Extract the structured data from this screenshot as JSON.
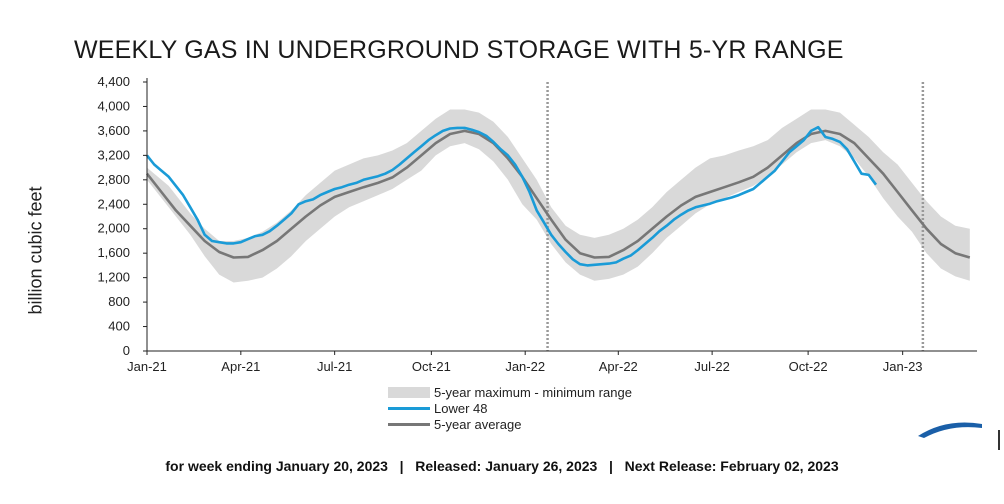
{
  "chart_data": {
    "type": "area",
    "title": "WEEKLY GAS IN UNDERGROUND STORAGE WITH 5-YR RANGE",
    "ylabel": "billion cubic feet",
    "xlabel": "",
    "ylim": [
      0,
      4400
    ],
    "yticks": [
      0,
      400,
      800,
      1200,
      1600,
      2000,
      2400,
      2800,
      3200,
      3600,
      4000,
      4400
    ],
    "ytick_labels": [
      "0",
      "400",
      "800",
      "1,200",
      "1,600",
      "2,000",
      "2,400",
      "2,800",
      "3,200",
      "3,600",
      "4,000",
      "4,400"
    ],
    "xlim": [
      0,
      115
    ],
    "x_unit": "week index from Jan-21",
    "xticks": [
      {
        "x": 0,
        "label": "Jan-21"
      },
      {
        "x": 13,
        "label": "Apr-21"
      },
      {
        "x": 26,
        "label": "Jul-21"
      },
      {
        "x": 39.4,
        "label": "Oct-21"
      },
      {
        "x": 52.4,
        "label": "Jan-22"
      },
      {
        "x": 65.3,
        "label": "Apr-22"
      },
      {
        "x": 78.3,
        "label": "Jul-22"
      },
      {
        "x": 91.6,
        "label": "Oct-22"
      },
      {
        "x": 104.7,
        "label": "Jan-23"
      }
    ],
    "year_dividers": [
      55.5,
      107.5
    ],
    "grid": true,
    "series": [
      {
        "name": "5-year maximum - minimum range",
        "kind": "band",
        "points": [
          [
            0,
            3000,
            2800
          ],
          [
            3,
            2700,
            2350
          ],
          [
            6,
            2250,
            1900
          ],
          [
            8,
            2000,
            1550
          ],
          [
            10,
            1800,
            1250
          ],
          [
            12,
            1800,
            1120
          ],
          [
            14,
            1850,
            1150
          ],
          [
            16,
            1950,
            1200
          ],
          [
            18,
            2100,
            1350
          ],
          [
            20,
            2300,
            1550
          ],
          [
            22,
            2550,
            1800
          ],
          [
            24,
            2750,
            2000
          ],
          [
            26,
            2950,
            2200
          ],
          [
            28,
            3050,
            2350
          ],
          [
            30,
            3150,
            2450
          ],
          [
            32,
            3200,
            2550
          ],
          [
            34,
            3280,
            2650
          ],
          [
            36,
            3400,
            2800
          ],
          [
            38,
            3600,
            2950
          ],
          [
            40,
            3800,
            3200
          ],
          [
            42,
            3950,
            3350
          ],
          [
            44,
            3950,
            3400
          ],
          [
            46,
            3900,
            3300
          ],
          [
            48,
            3750,
            3100
          ],
          [
            50,
            3500,
            2800
          ],
          [
            52,
            3150,
            2400
          ],
          [
            54,
            2800,
            2150
          ],
          [
            56,
            2350,
            1750
          ],
          [
            58,
            2050,
            1450
          ],
          [
            60,
            1900,
            1250
          ],
          [
            62,
            1850,
            1150
          ],
          [
            64,
            1900,
            1180
          ],
          [
            66,
            2000,
            1250
          ],
          [
            68,
            2150,
            1380
          ],
          [
            70,
            2350,
            1600
          ],
          [
            72,
            2600,
            1850
          ],
          [
            74,
            2800,
            2050
          ],
          [
            76,
            3000,
            2250
          ],
          [
            78,
            3150,
            2400
          ],
          [
            80,
            3200,
            2500
          ],
          [
            82,
            3280,
            2600
          ],
          [
            84,
            3350,
            2700
          ],
          [
            86,
            3450,
            2850
          ],
          [
            88,
            3650,
            3050
          ],
          [
            90,
            3800,
            3250
          ],
          [
            92,
            3950,
            3400
          ],
          [
            94,
            3950,
            3450
          ],
          [
            96,
            3900,
            3350
          ],
          [
            98,
            3700,
            3150
          ],
          [
            100,
            3500,
            2850
          ],
          [
            102,
            3250,
            2500
          ],
          [
            104,
            3050,
            2200
          ],
          [
            106,
            2750,
            1950
          ],
          [
            108,
            2450,
            1600
          ],
          [
            110,
            2200,
            1350
          ],
          [
            112,
            2050,
            1220
          ],
          [
            114,
            2000,
            1150
          ]
        ]
      },
      {
        "name": "Lower 48",
        "kind": "line",
        "points": [
          [
            0,
            3200
          ],
          [
            1,
            3050
          ],
          [
            2,
            2950
          ],
          [
            3,
            2850
          ],
          [
            4,
            2700
          ],
          [
            5,
            2550
          ],
          [
            6,
            2350
          ],
          [
            7,
            2150
          ],
          [
            8,
            1900
          ],
          [
            9,
            1800
          ],
          [
            10,
            1780
          ],
          [
            11,
            1760
          ],
          [
            12,
            1760
          ],
          [
            13,
            1780
          ],
          [
            14,
            1830
          ],
          [
            15,
            1880
          ],
          [
            16,
            1900
          ],
          [
            17,
            1960
          ],
          [
            18,
            2050
          ],
          [
            19,
            2150
          ],
          [
            20,
            2250
          ],
          [
            21,
            2400
          ],
          [
            22,
            2450
          ],
          [
            23,
            2480
          ],
          [
            24,
            2550
          ],
          [
            25,
            2600
          ],
          [
            26,
            2650
          ],
          [
            27,
            2680
          ],
          [
            28,
            2720
          ],
          [
            29,
            2750
          ],
          [
            30,
            2800
          ],
          [
            31,
            2830
          ],
          [
            32,
            2860
          ],
          [
            33,
            2900
          ],
          [
            34,
            2960
          ],
          [
            35,
            3050
          ],
          [
            36,
            3150
          ],
          [
            37,
            3250
          ],
          [
            38,
            3350
          ],
          [
            39,
            3450
          ],
          [
            40,
            3530
          ],
          [
            41,
            3600
          ],
          [
            42,
            3640
          ],
          [
            43,
            3650
          ],
          [
            44,
            3650
          ],
          [
            45,
            3620
          ],
          [
            46,
            3580
          ],
          [
            47,
            3520
          ],
          [
            48,
            3420
          ],
          [
            49,
            3300
          ],
          [
            50,
            3200
          ],
          [
            51,
            3050
          ],
          [
            52,
            2850
          ],
          [
            53,
            2600
          ],
          [
            54,
            2300
          ],
          [
            55,
            2100
          ],
          [
            56,
            1900
          ],
          [
            57,
            1750
          ],
          [
            58,
            1620
          ],
          [
            59,
            1500
          ],
          [
            60,
            1420
          ],
          [
            61,
            1400
          ],
          [
            62,
            1410
          ],
          [
            63,
            1420
          ],
          [
            64,
            1430
          ],
          [
            65,
            1450
          ],
          [
            66,
            1510
          ],
          [
            67,
            1560
          ],
          [
            68,
            1650
          ],
          [
            69,
            1750
          ],
          [
            70,
            1850
          ],
          [
            71,
            1960
          ],
          [
            72,
            2050
          ],
          [
            73,
            2150
          ],
          [
            74,
            2230
          ],
          [
            75,
            2300
          ],
          [
            76,
            2350
          ],
          [
            77,
            2380
          ],
          [
            78,
            2410
          ],
          [
            79,
            2450
          ],
          [
            80,
            2480
          ],
          [
            81,
            2510
          ],
          [
            82,
            2550
          ],
          [
            83,
            2600
          ],
          [
            84,
            2650
          ],
          [
            85,
            2750
          ],
          [
            86,
            2850
          ],
          [
            87,
            2950
          ],
          [
            88,
            3100
          ],
          [
            89,
            3250
          ],
          [
            90,
            3350
          ],
          [
            91,
            3450
          ],
          [
            92,
            3600
          ],
          [
            93,
            3660
          ],
          [
            94,
            3500
          ],
          [
            95,
            3470
          ],
          [
            96,
            3420
          ],
          [
            97,
            3300
          ],
          [
            98,
            3100
          ],
          [
            99,
            2900
          ],
          [
            100,
            2880
          ],
          [
            101,
            2720
          ]
        ]
      },
      {
        "name": "5-year average",
        "kind": "line",
        "points": [
          [
            0,
            2900
          ],
          [
            2,
            2600
          ],
          [
            4,
            2300
          ],
          [
            6,
            2050
          ],
          [
            8,
            1800
          ],
          [
            10,
            1620
          ],
          [
            12,
            1530
          ],
          [
            14,
            1540
          ],
          [
            16,
            1650
          ],
          [
            18,
            1800
          ],
          [
            20,
            2000
          ],
          [
            22,
            2200
          ],
          [
            24,
            2380
          ],
          [
            26,
            2520
          ],
          [
            28,
            2600
          ],
          [
            30,
            2680
          ],
          [
            32,
            2750
          ],
          [
            34,
            2840
          ],
          [
            36,
            3000
          ],
          [
            38,
            3200
          ],
          [
            40,
            3400
          ],
          [
            42,
            3550
          ],
          [
            44,
            3600
          ],
          [
            46,
            3550
          ],
          [
            48,
            3400
          ],
          [
            50,
            3150
          ],
          [
            52,
            2850
          ],
          [
            54,
            2500
          ],
          [
            56,
            2150
          ],
          [
            58,
            1820
          ],
          [
            60,
            1600
          ],
          [
            62,
            1530
          ],
          [
            64,
            1540
          ],
          [
            66,
            1650
          ],
          [
            68,
            1800
          ],
          [
            70,
            2000
          ],
          [
            72,
            2200
          ],
          [
            74,
            2380
          ],
          [
            76,
            2520
          ],
          [
            78,
            2600
          ],
          [
            80,
            2680
          ],
          [
            82,
            2760
          ],
          [
            84,
            2850
          ],
          [
            86,
            3000
          ],
          [
            88,
            3200
          ],
          [
            90,
            3400
          ],
          [
            92,
            3550
          ],
          [
            94,
            3600
          ],
          [
            96,
            3550
          ],
          [
            98,
            3400
          ],
          [
            100,
            3150
          ],
          [
            102,
            2900
          ],
          [
            104,
            2600
          ],
          [
            106,
            2300
          ],
          [
            108,
            2000
          ],
          [
            110,
            1750
          ],
          [
            112,
            1600
          ],
          [
            114,
            1530
          ]
        ]
      }
    ],
    "legend_position": "bottom-center"
  },
  "footer": {
    "week_ending": "for week ending January 20, 2023",
    "released": "Released: January 26, 2023",
    "next_release": "Next Release: February 02, 2023",
    "separator": "|"
  },
  "colors": {
    "band": "#d9d9d9",
    "lower48": "#1a9bd7",
    "average": "#777777",
    "divider": "#999999",
    "axis": "#222222"
  }
}
